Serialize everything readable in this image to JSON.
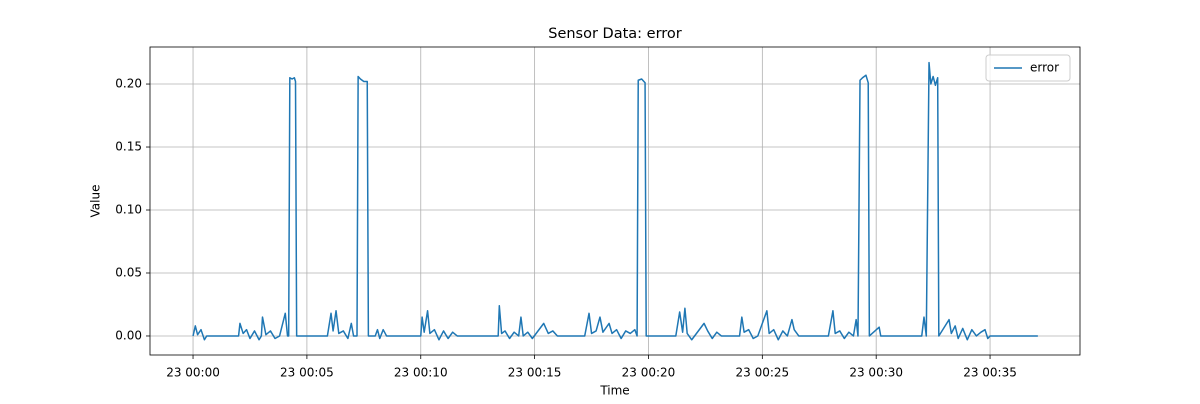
{
  "chart_data": {
    "type": "line",
    "title": "Sensor Data: error",
    "xlabel": "Time",
    "ylabel": "Value",
    "x": [
      0,
      0.1,
      0.2,
      0.35,
      0.5,
      0.6,
      2.0,
      2.06,
      2.2,
      2.35,
      2.5,
      2.7,
      2.9,
      3.0,
      3.05,
      3.2,
      3.4,
      3.6,
      3.8,
      4.05,
      4.15,
      4.2,
      4.25,
      4.35,
      4.45,
      4.5,
      4.55,
      5.9,
      6.06,
      6.15,
      6.28,
      6.4,
      6.6,
      6.8,
      6.95,
      7.05,
      7.2,
      7.25,
      7.35,
      7.5,
      7.65,
      7.7,
      8.0,
      8.1,
      8.2,
      8.35,
      8.5,
      10.0,
      10.06,
      10.15,
      10.3,
      10.4,
      10.6,
      10.8,
      11.0,
      11.2,
      11.4,
      11.6,
      13.4,
      13.45,
      13.55,
      13.7,
      13.9,
      14.1,
      14.3,
      14.4,
      14.5,
      14.7,
      14.9,
      15.4,
      15.6,
      15.8,
      16.0,
      17.2,
      17.39,
      17.5,
      17.7,
      17.87,
      18.0,
      18.27,
      18.4,
      18.6,
      18.8,
      19.0,
      19.2,
      19.4,
      19.5,
      19.55,
      19.7,
      19.85,
      19.9,
      21.2,
      21.37,
      21.5,
      21.6,
      21.7,
      21.9,
      22.44,
      22.6,
      22.8,
      23.0,
      23.2,
      24.0,
      24.1,
      24.2,
      24.4,
      24.6,
      24.8,
      25.2,
      25.3,
      25.5,
      25.7,
      25.9,
      26.1,
      26.3,
      26.4,
      26.6,
      27.9,
      28.1,
      28.2,
      28.4,
      28.6,
      28.8,
      29.0,
      29.12,
      29.2,
      29.29,
      29.4,
      29.55,
      29.65,
      29.7,
      30.13,
      30.2,
      32.0,
      32.1,
      32.2,
      32.32,
      32.4,
      32.5,
      32.6,
      32.7,
      32.75,
      33.2,
      33.3,
      33.47,
      33.6,
      33.8,
      34.0,
      34.2,
      34.4,
      34.6,
      34.78,
      34.9,
      35.0,
      37.1
    ],
    "series": [
      {
        "name": "error",
        "color": "#1f77b4",
        "values": [
          0,
          0.008,
          0.001,
          0.005,
          -0.003,
          0,
          0,
          0.01,
          0.002,
          0.005,
          -0.002,
          0.004,
          -0.003,
          0,
          0.015,
          0.001,
          0.004,
          -0.002,
          0,
          0.018,
          0,
          0,
          0.205,
          0.204,
          0.205,
          0.202,
          0,
          0,
          0.018,
          0.004,
          0.02,
          0.002,
          0.004,
          -0.002,
          0.01,
          0,
          0,
          0.206,
          0.204,
          0.202,
          0.202,
          0,
          0,
          0.005,
          -0.002,
          0.005,
          0,
          0,
          0.015,
          0.003,
          0.02,
          0.002,
          0.005,
          -0.003,
          0.004,
          -0.002,
          0.003,
          0,
          0,
          0.024,
          0.002,
          0.004,
          -0.002,
          0.003,
          0,
          0.015,
          0,
          0.003,
          -0.002,
          0.01,
          0.002,
          0.004,
          0,
          0,
          0.018,
          0.002,
          0.004,
          0.015,
          0.003,
          0.01,
          0.002,
          0.005,
          -0.002,
          0.004,
          0.002,
          0.005,
          0,
          0.203,
          0.204,
          0.201,
          0,
          0,
          0.019,
          0.003,
          0.022,
          0.002,
          -0.003,
          0.01,
          0.004,
          -0.002,
          0.003,
          0,
          0,
          0.015,
          0.003,
          0.005,
          -0.002,
          0,
          0.02,
          0.002,
          0.005,
          -0.003,
          0.004,
          0,
          0.013,
          0.005,
          0,
          0,
          0.02,
          0.002,
          0.004,
          -0.002,
          0.003,
          0,
          0.013,
          0,
          0.203,
          0.205,
          0.207,
          0.201,
          0,
          0.007,
          0,
          0,
          0.015,
          0,
          0.217,
          0.2,
          0.206,
          0.199,
          0.205,
          0,
          0.013,
          0.002,
          0.008,
          -0.002,
          0.006,
          -0.003,
          0.005,
          0,
          0.003,
          0.005,
          -0.002,
          0,
          0
        ]
      }
    ],
    "xlim": [
      -1.89,
      38.95
    ],
    "ylim": [
      -0.0151,
      0.2294
    ],
    "xticks": [
      {
        "value": 0,
        "label": "23 00:00"
      },
      {
        "value": 5,
        "label": "23 00:05"
      },
      {
        "value": 10,
        "label": "23 00:10"
      },
      {
        "value": 15,
        "label": "23 00:15"
      },
      {
        "value": 20,
        "label": "23 00:20"
      },
      {
        "value": 25,
        "label": "23 00:25"
      },
      {
        "value": 30,
        "label": "23 00:30"
      },
      {
        "value": 35,
        "label": "23 00:35"
      }
    ],
    "yticks": [
      {
        "value": 0,
        "label": "0.00"
      },
      0.05,
      {
        "value": 0.1,
        "label": "0.10"
      },
      0.15,
      {
        "value": 0.2,
        "label": "0.20"
      }
    ],
    "grid": true,
    "legend": "upper right"
  }
}
